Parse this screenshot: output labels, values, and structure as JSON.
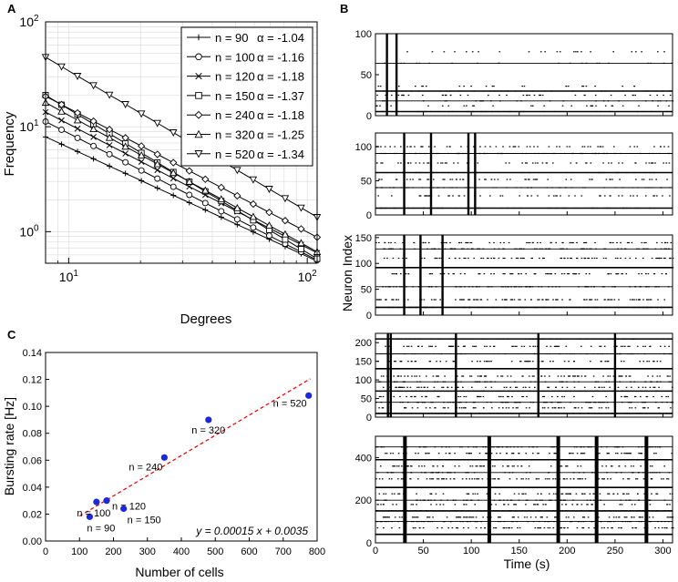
{
  "panels": {
    "a": {
      "letter": "A"
    },
    "b": {
      "letter": "B"
    },
    "c": {
      "letter": "C"
    }
  },
  "chart_data": [
    {
      "type": "line",
      "panel": "A",
      "scale": "log-log",
      "xlabel": "Degrees",
      "ylabel": "Frequency",
      "xlim": [
        8,
        110
      ],
      "ylim": [
        0.5,
        100
      ],
      "xticks": [
        {
          "value": 10,
          "base": "10",
          "exp": "1"
        },
        {
          "value": 100,
          "base": "10",
          "exp": "2"
        }
      ],
      "yticks": [
        {
          "value": 1,
          "base": "10",
          "exp": "0"
        },
        {
          "value": 10,
          "base": "10",
          "exp": "1"
        },
        {
          "value": 100,
          "base": "10",
          "exp": "2"
        }
      ],
      "grid": true,
      "legend_position": "top-right",
      "series": [
        {
          "name": "n = 90",
          "alpha": "α = -1.04",
          "marker": "plus",
          "y_at_8": 8.0
        },
        {
          "name": "n = 100",
          "alpha": "α = -1.16",
          "marker": "circle",
          "y_at_8": 11.2
        },
        {
          "name": "n = 120",
          "alpha": "α = -1.18",
          "marker": "x",
          "y_at_8": 13.8
        },
        {
          "name": "n = 150",
          "alpha": "α = -1.37",
          "marker": "square",
          "y_at_8": 20.0
        },
        {
          "name": "n = 240",
          "alpha": "α = -1.18",
          "marker": "diamond",
          "y_at_8": 19.5
        },
        {
          "name": "n = 320",
          "alpha": "α = -1.25",
          "marker": "triangle-up",
          "y_at_8": 17.0
        },
        {
          "name": "n = 520",
          "alpha": "α = -1.34",
          "marker": "triangle-down",
          "y_at_8": 46.0
        }
      ]
    },
    {
      "type": "raster",
      "panel": "B",
      "xlabel": "Time (s)",
      "ylabel": "Neuron Index",
      "xlim": [
        0,
        310
      ],
      "xticks": [
        0,
        50,
        100,
        150,
        200,
        250,
        300
      ],
      "subplots": [
        {
          "ylim": [
            0,
            100
          ],
          "yticks": [
            0,
            50,
            100
          ],
          "bursts": [
            12,
            22
          ],
          "rows": [
            5,
            12,
            18,
            25,
            30,
            36,
            64,
            78
          ]
        },
        {
          "ylim": [
            0,
            120
          ],
          "yticks": [
            0,
            50,
            100
          ],
          "bursts": [
            30,
            58,
            97,
            104
          ],
          "rows": [
            10,
            28,
            40,
            52,
            62,
            76,
            90,
            100
          ]
        },
        {
          "ylim": [
            0,
            155
          ],
          "yticks": [
            0,
            50,
            100,
            150
          ],
          "bursts": [
            30,
            47,
            70
          ],
          "rows": [
            15,
            30,
            55,
            80,
            92,
            110,
            128,
            140
          ]
        },
        {
          "ylim": [
            0,
            225
          ],
          "yticks": [
            0,
            50,
            100,
            150,
            200
          ],
          "bursts": [
            13,
            16,
            84,
            170,
            250
          ],
          "rows": [
            10,
            25,
            40,
            55,
            70,
            80,
            95,
            110,
            130,
            150,
            170,
            190,
            210
          ]
        },
        {
          "ylim": [
            0,
            500
          ],
          "yticks": [
            0,
            200,
            400
          ],
          "bursts": [
            30,
            118,
            190,
            230,
            282
          ],
          "rows": [
            40,
            70,
            100,
            120,
            150,
            180,
            200,
            230,
            260,
            300,
            330,
            360,
            390,
            420,
            450
          ]
        }
      ]
    },
    {
      "type": "scatter",
      "panel": "C",
      "xlabel": "Number of cells",
      "ylabel": "Bursting rate [Hz]",
      "xlim": [
        0,
        800
      ],
      "ylim": [
        0,
        0.14
      ],
      "xticks": [
        "0",
        "100",
        "200",
        "300",
        "400",
        "500",
        "600",
        "700",
        "800"
      ],
      "yticks": [
        "0.00",
        "0.02",
        "0.04",
        "0.06",
        "0.08",
        "0.10",
        "0.12",
        "0.14"
      ],
      "points": [
        {
          "x": 130,
          "y": 0.018,
          "label": "n = 90"
        },
        {
          "x": 150,
          "y": 0.029,
          "label": "n = 100"
        },
        {
          "x": 180,
          "y": 0.03,
          "label": "n = 120"
        },
        {
          "x": 230,
          "y": 0.024,
          "label": "n = 150"
        },
        {
          "x": 350,
          "y": 0.062,
          "label": "n = 240"
        },
        {
          "x": 480,
          "y": 0.09,
          "label": "n = 320"
        },
        {
          "x": 775,
          "y": 0.108,
          "label": "n = 520"
        }
      ],
      "fit": {
        "slope": 0.00015,
        "intercept": 0.0035,
        "equation": "y = 0.00015 x + 0.0035",
        "x_from": 100,
        "x_to": 780
      }
    }
  ]
}
